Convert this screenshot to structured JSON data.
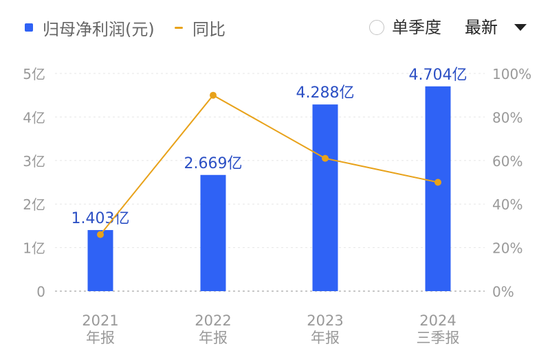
{
  "legend": {
    "bar_label": "归母净利润(元)",
    "line_label": "同比"
  },
  "controls": {
    "toggle_label": "单季度",
    "period_label": "最新"
  },
  "colors": {
    "bar": "#2f62f5",
    "line": "#e8a21a",
    "value_label": "#2b4fc4",
    "axis_text": "#999999",
    "grid": "#e6e6e6"
  },
  "chart_data": {
    "type": "bar",
    "categories": [
      [
        "2021",
        "年报"
      ],
      [
        "2022",
        "年报"
      ],
      [
        "2023",
        "年报"
      ],
      [
        "2024",
        "三季报"
      ]
    ],
    "series": [
      {
        "name": "归母净利润(元)",
        "type": "bar",
        "axis": "left",
        "values": [
          1.403,
          2.669,
          4.288,
          4.704
        ],
        "labels": [
          "1.403亿",
          "2.669亿",
          "4.288亿",
          "4.704亿"
        ]
      },
      {
        "name": "同比",
        "type": "line",
        "axis": "right",
        "values": [
          26,
          90,
          61,
          50
        ]
      }
    ],
    "y_left": {
      "range": [
        0,
        5
      ],
      "ticks": [
        0,
        1,
        2,
        3,
        4,
        5
      ],
      "tick_labels": [
        "0",
        "1亿",
        "2亿",
        "3亿",
        "4亿",
        "5亿"
      ]
    },
    "y_right": {
      "range": [
        0,
        100
      ],
      "ticks": [
        0,
        20,
        40,
        60,
        80,
        100
      ],
      "tick_labels": [
        "0%",
        "20%",
        "40%",
        "60%",
        "80%",
        "100%"
      ]
    },
    "grid": true,
    "legend_position": "top-left"
  }
}
